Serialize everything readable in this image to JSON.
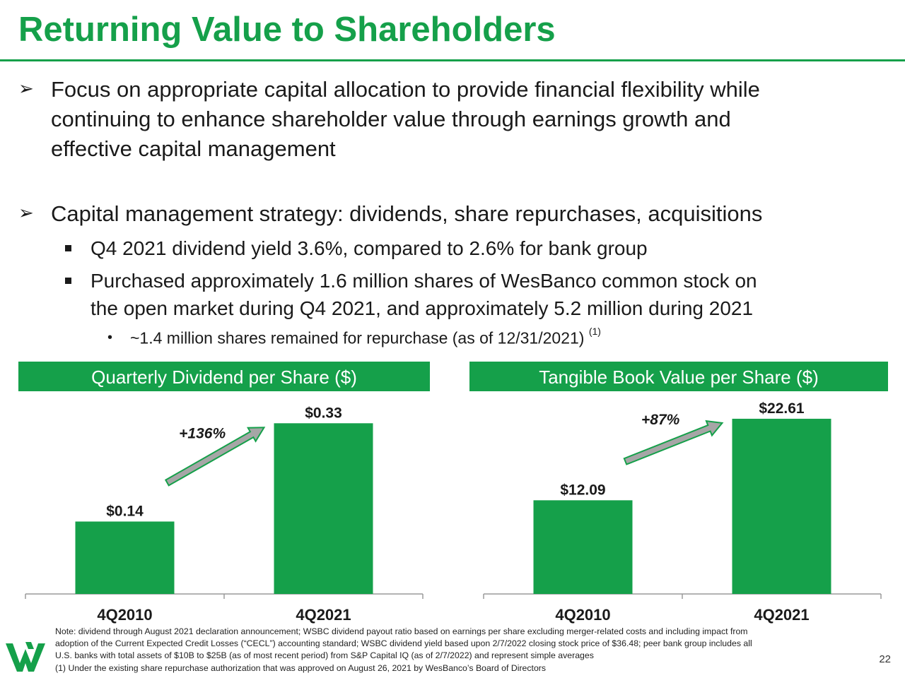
{
  "slide": {
    "title": "Returning Value to Shareholders",
    "bullets": {
      "b1_line1": "Focus on appropriate capital allocation to provide financial flexibility while",
      "b1_line2": "continuing to enhance shareholder value through earnings growth and",
      "b1_line3": "effective capital management",
      "b2": "Capital management strategy:  dividends, share repurchases, acquisitions",
      "sub1": "Q4 2021 dividend yield 3.6%, compared to 2.6% for bank group",
      "sub2_line1": "Purchased approximately 1.6 million shares of WesBanco common stock on",
      "sub2_line2": "the open market during Q4 2021, and approximately 5.2 million during 2021",
      "subsub": "~1.4 million shares remained for repurchase (as of 12/31/2021)",
      "subsub_ref": "(1)"
    },
    "note_lines": [
      "Note:  dividend through August 2021 declaration announcement; WSBC dividend payout ratio based on earnings per share excluding merger-related costs and including impact from",
      "adoption of the Current Expected Credit Losses (“CECL”) accounting standard; WSBC dividend yield based upon 2/7/2022 closing stock price of $36.48; peer bank group includes all",
      "U.S. banks with total assets of $10B to $25B (as of most recent period) from S&P Capital IQ (as of 2/7/2022) and represent simple averages",
      "(1) Under the existing share repurchase authorization that was approved on August 26, 2021 by WesBanco’s Board of Directors"
    ],
    "page_number": "22",
    "colors": {
      "brand_green": "#15a04a",
      "arrow_gray": "#a6a6a6"
    }
  },
  "chart_data": [
    {
      "type": "bar",
      "title": "Quarterly Dividend per Share ($)",
      "categories": [
        "4Q2010",
        "4Q2021"
      ],
      "values": [
        0.14,
        0.33
      ],
      "labels": [
        "$0.14",
        "$0.33"
      ],
      "ylim": [
        0,
        0.37
      ],
      "annotation": "+136%",
      "grid": false
    },
    {
      "type": "bar",
      "title": "Tangible Book Value per Share ($)",
      "categories": [
        "4Q2010",
        "4Q2021"
      ],
      "values": [
        12.09,
        22.61
      ],
      "labels": [
        "$12.09",
        "$22.61"
      ],
      "ylim": [
        0,
        24.7
      ],
      "annotation": "+87%",
      "grid": false
    }
  ]
}
